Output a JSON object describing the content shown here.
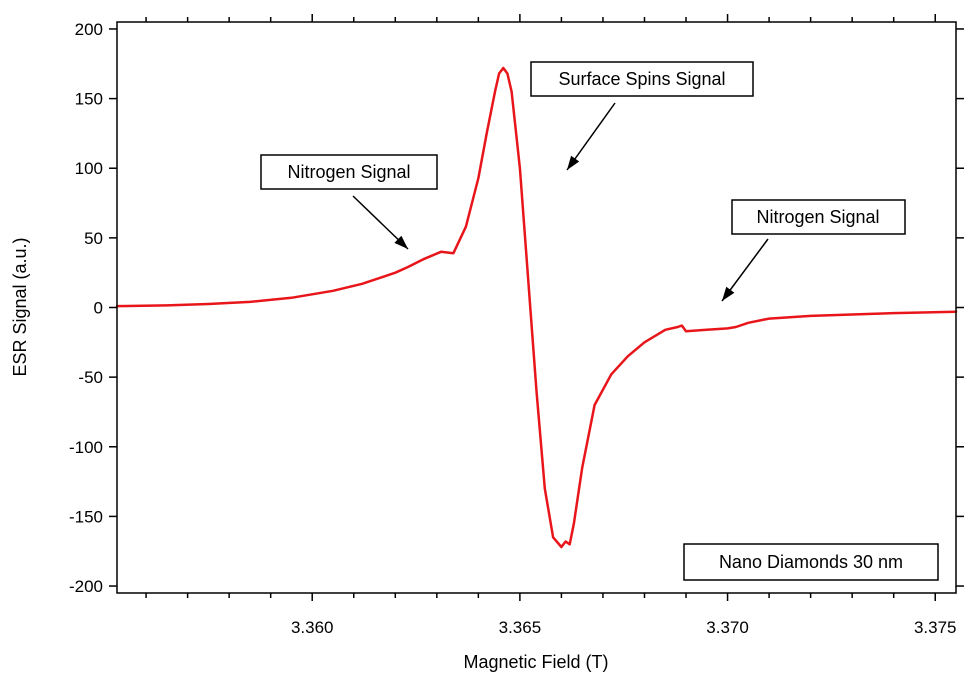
{
  "chart_data": {
    "type": "line",
    "title": "",
    "xlabel": "Magnetic Field (T)",
    "ylabel": "ESR Signal (a.u.)",
    "xlim": [
      3.3553,
      3.3755
    ],
    "ylim": [
      -205,
      205
    ],
    "x_ticks": [
      {
        "value": 3.36,
        "label": "3.360"
      },
      {
        "value": 3.365,
        "label": "3.365"
      },
      {
        "value": 3.37,
        "label": "3.370"
      },
      {
        "value": 3.375,
        "label": "3.375"
      }
    ],
    "y_ticks": [
      {
        "value": 200,
        "label": "200"
      },
      {
        "value": 150,
        "label": "150"
      },
      {
        "value": 100,
        "label": "100"
      },
      {
        "value": 50,
        "label": "50"
      },
      {
        "value": 0,
        "label": "0"
      },
      {
        "value": -50,
        "label": "-50"
      },
      {
        "value": -100,
        "label": "-100"
      },
      {
        "value": -150,
        "label": "-150"
      },
      {
        "value": -200,
        "label": "-200"
      }
    ],
    "x_minor_step": 0.001,
    "grid": false,
    "series": [
      {
        "color": "#e8161b",
        "x": [
          3.3553,
          3.3565,
          3.3575,
          3.3585,
          3.3595,
          3.3605,
          3.3612,
          3.3617,
          3.362,
          3.3623,
          3.3627,
          3.3631,
          3.3634,
          3.3637,
          3.364,
          3.3642,
          3.3644,
          3.3645,
          3.3646,
          3.3647,
          3.3648,
          3.365,
          3.3652,
          3.3654,
          3.3656,
          3.3658,
          3.366,
          3.3661,
          3.3662,
          3.3663,
          3.3665,
          3.3668,
          3.3672,
          3.3676,
          3.368,
          3.3685,
          3.3688,
          3.3689,
          3.369,
          3.3695,
          3.37,
          3.3702,
          3.3705,
          3.371,
          3.372,
          3.373,
          3.374,
          3.3755
        ],
        "y": [
          1,
          1.5,
          2.5,
          4,
          7,
          12,
          17,
          22,
          25,
          29,
          35,
          40,
          39,
          58,
          93,
          125,
          155,
          168,
          172,
          168,
          155,
          100,
          20,
          -60,
          -130,
          -165,
          -172,
          -168,
          -170,
          -155,
          -115,
          -70,
          -48,
          -35,
          -25,
          -16,
          -14,
          -13,
          -17,
          -16,
          -15,
          -14,
          -11,
          -8,
          -6,
          -5,
          -4,
          -3
        ]
      }
    ],
    "annotations": [
      {
        "text": "Nitrogen Signal",
        "arrow_to": [
          3.3631,
          40
        ]
      },
      {
        "text": "Surface Spins Signal",
        "arrow_to": [
          3.3659,
          95
        ]
      },
      {
        "text": "Nitrogen Signal",
        "arrow_to": [
          3.3694,
          0
        ]
      },
      {
        "text": "Nano Diamonds 30 nm"
      }
    ]
  }
}
